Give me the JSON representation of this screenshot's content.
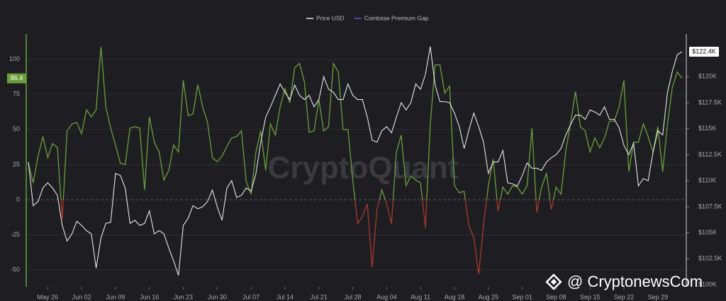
{
  "chart_data": {
    "type": "line",
    "categories": [
      null,
      null,
      null,
      null,
      "May 26",
      null,
      null,
      null,
      null,
      null,
      null,
      "Jun 02",
      null,
      null,
      null,
      null,
      null,
      null,
      "Jun 09",
      null,
      null,
      null,
      null,
      null,
      null,
      "Jun 16",
      null,
      null,
      null,
      null,
      null,
      null,
      "Jun 23",
      null,
      null,
      null,
      null,
      null,
      null,
      "Jun 30",
      null,
      null,
      null,
      null,
      null,
      null,
      "Jul 07",
      null,
      null,
      null,
      null,
      null,
      null,
      "Jul 14",
      null,
      null,
      null,
      null,
      null,
      null,
      "Jul 21",
      null,
      null,
      null,
      null,
      null,
      null,
      "Jul 28",
      null,
      null,
      null,
      null,
      null,
      null,
      "Aug 04",
      null,
      null,
      null,
      null,
      null,
      null,
      "Aug 11",
      null,
      null,
      null,
      null,
      null,
      null,
      "Aug 18",
      null,
      null,
      null,
      null,
      null,
      null,
      "Aug 25",
      null,
      null,
      null,
      null,
      null,
      null,
      "Sep 01",
      null,
      null,
      null,
      null,
      null,
      null,
      "Sep 08",
      null,
      null,
      null,
      null,
      null,
      null,
      "Sep 15",
      null,
      null,
      null,
      null,
      null,
      null,
      "Sep 22",
      null,
      null,
      null,
      null,
      null,
      null,
      "Sep 29",
      null,
      null,
      null,
      null,
      null
    ],
    "series": [
      {
        "name": "Price USD",
        "color": "#e6e6e6",
        "axis": "y2",
        "values": [
          111800,
          107600,
          108000,
          109300,
          109800,
          109300,
          108600,
          105700,
          104200,
          104900,
          106100,
          105700,
          105200,
          104900,
          101600,
          104500,
          105900,
          106000,
          110700,
          110500,
          109300,
          105900,
          106200,
          105700,
          105900,
          107100,
          104900,
          105200,
          104900,
          103500,
          102300,
          100900,
          105700,
          106400,
          107600,
          107300,
          107500,
          108000,
          109100,
          107500,
          106200,
          109300,
          110000,
          108400,
          108600,
          109300,
          109000,
          110700,
          113700,
          116100,
          117100,
          118200,
          119300,
          118500,
          117800,
          119200,
          118200,
          117800,
          118200,
          117100,
          117800,
          120000,
          118800,
          118500,
          117800,
          117800,
          119300,
          118200,
          117800,
          117800,
          116100,
          113900,
          113700,
          114800,
          115200,
          114600,
          116100,
          117500,
          116800,
          117500,
          119300,
          118800,
          120200,
          122900,
          119200,
          117600,
          117600,
          117500,
          116500,
          115200,
          113100,
          114900,
          116500,
          115200,
          113700,
          110700,
          111800,
          111800,
          112900,
          109800,
          109700,
          109500,
          110500,
          111700,
          111200,
          111200,
          111000,
          111800,
          112200,
          112500,
          113100,
          114400,
          115400,
          116300,
          116300,
          115900,
          116800,
          116600,
          116300,
          117100,
          115900,
          115900,
          115100,
          113400,
          112500,
          113600,
          109500,
          110200,
          110000,
          112700,
          114800,
          114400,
          118500,
          120500,
          122100,
          122400
        ],
        "value_labels": [
          null,
          null,
          null,
          null,
          null,
          null,
          null,
          null,
          null,
          null,
          null,
          null,
          null,
          null,
          null,
          null,
          null,
          null,
          null,
          null,
          null,
          null,
          null,
          null,
          null,
          null,
          null,
          null,
          null,
          null,
          null,
          null,
          null,
          null,
          null,
          null,
          null,
          null,
          null,
          null,
          null,
          null,
          null,
          null,
          null,
          null,
          null,
          null,
          null,
          null,
          null,
          null,
          null,
          null,
          null,
          null,
          null,
          null,
          null,
          null,
          null,
          null,
          null,
          null,
          null,
          null,
          null,
          null,
          null,
          null,
          null,
          null,
          null,
          null,
          null,
          null,
          null,
          null,
          null,
          null,
          null,
          null,
          null,
          null,
          null,
          null,
          null,
          null,
          null,
          null,
          null,
          null,
          null,
          null,
          null,
          null,
          null,
          null,
          null,
          null,
          null,
          null,
          null,
          null,
          null,
          null,
          null,
          null,
          null,
          null,
          null,
          null,
          null,
          null,
          null,
          null,
          null,
          null,
          null,
          null,
          null,
          null,
          null,
          null,
          null,
          null,
          null,
          null,
          null,
          null,
          null,
          null,
          null,
          null,
          null,
          "$122.4K"
        ]
      },
      {
        "name": "Coinbase Premium Gap",
        "color": "#6a9f3a",
        "negative_color": "#a8392c",
        "legend_color": "#5656d8",
        "values": [
          26,
          12,
          31,
          45,
          30,
          40,
          37,
          -14,
          49,
          54,
          55,
          47,
          64,
          59,
          64,
          109,
          66,
          51,
          39,
          26,
          25,
          51,
          52,
          51,
          7,
          59,
          41,
          34,
          14,
          21,
          39,
          34,
          85,
          60,
          61,
          82,
          66,
          55,
          30,
          27,
          31,
          38,
          44,
          45,
          49,
          13,
          4,
          34,
          49,
          21,
          54,
          46,
          66,
          79,
          69,
          94,
          97,
          84,
          48,
          49,
          71,
          49,
          52,
          97,
          91,
          50,
          50,
          14,
          -17,
          -12,
          -3,
          -48,
          -7,
          7,
          -3,
          -17,
          34,
          46,
          10,
          17,
          14,
          12,
          -20,
          54,
          96,
          96,
          76,
          81,
          10,
          5,
          6,
          -19,
          -27,
          -53,
          -18,
          10,
          29,
          -8,
          9,
          4,
          10,
          9,
          4,
          10,
          51,
          -9,
          9,
          19,
          -7,
          9,
          4,
          35,
          55,
          77,
          52,
          49,
          34,
          44,
          37,
          44,
          56,
          56,
          66,
          85,
          20,
          41,
          41,
          54,
          45,
          34,
          52,
          20,
          54,
          80,
          91,
          86.4
        ]
      }
    ],
    "ylim": [
      -62,
      118
    ],
    "yticks": [
      -50,
      -25,
      0,
      25,
      50,
      75,
      100
    ],
    "y2lim": [
      99800,
      124100
    ],
    "y2ticks": [
      {
        "value": 100000,
        "label": "$100K"
      },
      {
        "value": 102500,
        "label": "$102.5K"
      },
      {
        "value": 105000,
        "label": "$105K"
      },
      {
        "value": 107500,
        "label": "$107.5K"
      },
      {
        "value": 110000,
        "label": "$110K"
      },
      {
        "value": 112500,
        "label": "$112.5K"
      },
      {
        "value": 115000,
        "label": "$115K"
      },
      {
        "value": 117500,
        "label": "$117.5K"
      },
      {
        "value": 120000,
        "label": "$120K"
      }
    ],
    "grid": true,
    "legend": "top",
    "watermarks": [
      "CryptoQuant",
      "@ CryptonewsCom"
    ]
  }
}
